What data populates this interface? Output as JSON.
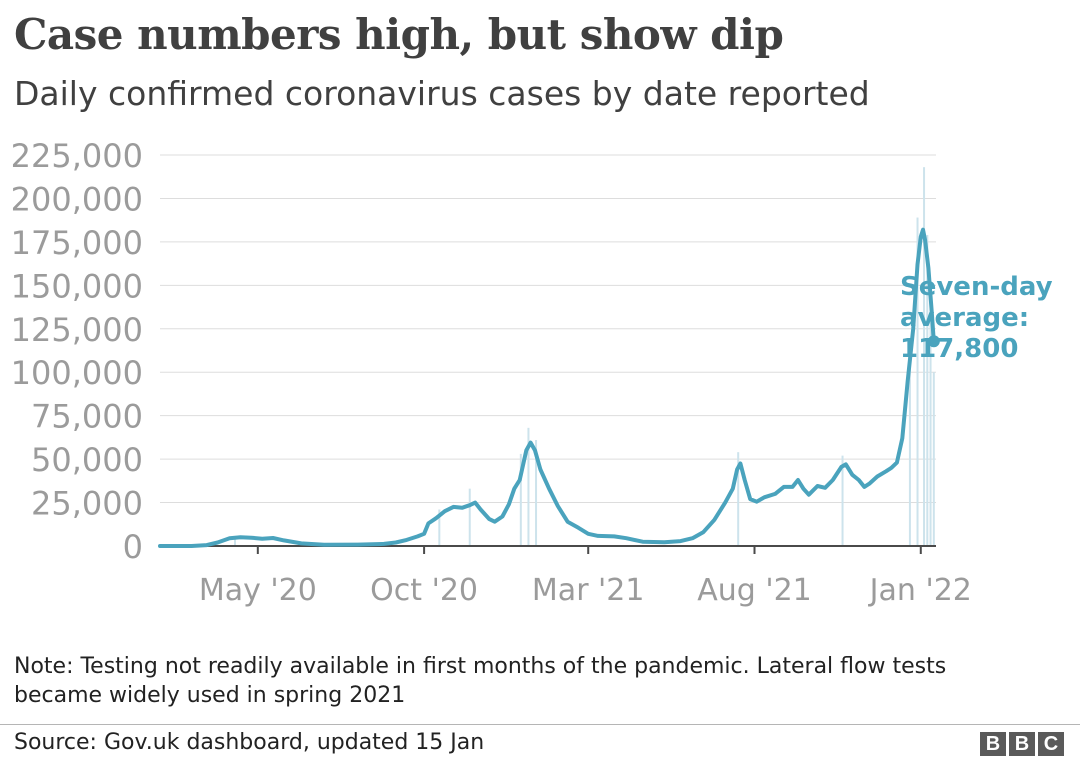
{
  "header": {
    "title": "Case numbers high, but show dip",
    "subtitle": "Daily confirmed coronavirus cases by date reported"
  },
  "footer": {
    "note": "Note: Testing not readily available in first months of the pandemic. Lateral flow tests became widely used in spring 2021",
    "source": "Source: Gov.uk dashboard, updated 15 Jan",
    "logo": "BBC",
    "logo_letters": [
      "B",
      "B",
      "C"
    ]
  },
  "colors": {
    "line": "#4aa3bd",
    "bars": "#cde3ec",
    "grid": "#dddddd",
    "axis": "#4a4a4a",
    "ytick": "#9b9b9b",
    "xtick": "#9b9b9b",
    "annotation": "#4aa3bd"
  },
  "chart_data": {
    "type": "line",
    "title": "Case numbers high, but show dip",
    "subtitle": "Daily confirmed coronavirus cases by date reported",
    "xlabel": "",
    "ylabel": "",
    "xlim": [
      "2020-02-01",
      "2022-01-15"
    ],
    "ylim": [
      0,
      225000
    ],
    "y_ticks": [
      0,
      25000,
      50000,
      75000,
      100000,
      125000,
      150000,
      175000,
      200000,
      225000
    ],
    "y_tick_labels": [
      "0",
      "25,000",
      "50,000",
      "75,000",
      "100,000",
      "125,000",
      "150,000",
      "175,000",
      "200,000",
      "225,000"
    ],
    "x_ticks": [
      "2020-05-01",
      "2020-10-01",
      "2021-03-01",
      "2021-08-01",
      "2022-01-01"
    ],
    "x_tick_labels": [
      "May '20",
      "Oct '20",
      "Mar '21",
      "Aug '21",
      "Jan '22"
    ],
    "grid": true,
    "legend": "none",
    "series": [
      {
        "type": "line",
        "points": [
          [
            "2020-02-01",
            0
          ],
          [
            "2020-03-01",
            0
          ],
          [
            "2020-03-15",
            500
          ],
          [
            "2020-03-25",
            2000
          ],
          [
            "2020-04-05",
            4500
          ],
          [
            "2020-04-15",
            5000
          ],
          [
            "2020-04-25",
            4800
          ],
          [
            "2020-05-05",
            4200
          ],
          [
            "2020-05-15",
            4600
          ],
          [
            "2020-05-25",
            3200
          ],
          [
            "2020-06-10",
            1500
          ],
          [
            "2020-07-01",
            700
          ],
          [
            "2020-08-01",
            800
          ],
          [
            "2020-08-25",
            1200
          ],
          [
            "2020-09-05",
            2000
          ],
          [
            "2020-09-15",
            3500
          ],
          [
            "2020-09-25",
            5500
          ],
          [
            "2020-10-01",
            7000
          ],
          [
            "2020-10-05",
            13000
          ],
          [
            "2020-10-12",
            16000
          ],
          [
            "2020-10-20",
            20000
          ],
          [
            "2020-10-28",
            22500
          ],
          [
            "2020-11-05",
            22000
          ],
          [
            "2020-11-12",
            23500
          ],
          [
            "2020-11-17",
            25000
          ],
          [
            "2020-11-22",
            21000
          ],
          [
            "2020-11-30",
            15500
          ],
          [
            "2020-12-05",
            14000
          ],
          [
            "2020-12-12",
            17000
          ],
          [
            "2020-12-18",
            24000
          ],
          [
            "2020-12-23",
            33000
          ],
          [
            "2020-12-28",
            38000
          ],
          [
            "2021-01-03",
            55000
          ],
          [
            "2021-01-07",
            59500
          ],
          [
            "2021-01-11",
            55000
          ],
          [
            "2021-01-16",
            44000
          ],
          [
            "2021-01-24",
            33000
          ],
          [
            "2021-02-01",
            23000
          ],
          [
            "2021-02-10",
            14000
          ],
          [
            "2021-02-20",
            10500
          ],
          [
            "2021-03-01",
            7000
          ],
          [
            "2021-03-10",
            5800
          ],
          [
            "2021-03-25",
            5500
          ],
          [
            "2021-04-05",
            4500
          ],
          [
            "2021-04-20",
            2500
          ],
          [
            "2021-05-10",
            2200
          ],
          [
            "2021-05-25",
            2800
          ],
          [
            "2021-06-05",
            4500
          ],
          [
            "2021-06-15",
            8000
          ],
          [
            "2021-06-25",
            15000
          ],
          [
            "2021-07-05",
            25000
          ],
          [
            "2021-07-12",
            33000
          ],
          [
            "2021-07-16",
            44000
          ],
          [
            "2021-07-19",
            47500
          ],
          [
            "2021-07-23",
            38000
          ],
          [
            "2021-07-28",
            27000
          ],
          [
            "2021-08-03",
            25500
          ],
          [
            "2021-08-10",
            28000
          ],
          [
            "2021-08-20",
            30000
          ],
          [
            "2021-08-28",
            34000
          ],
          [
            "2021-09-05",
            34000
          ],
          [
            "2021-09-10",
            38000
          ],
          [
            "2021-09-15",
            33000
          ],
          [
            "2021-09-20",
            29500
          ],
          [
            "2021-09-28",
            34500
          ],
          [
            "2021-10-05",
            33500
          ],
          [
            "2021-10-12",
            38000
          ],
          [
            "2021-10-20",
            45500
          ],
          [
            "2021-10-24",
            47000
          ],
          [
            "2021-10-30",
            41000
          ],
          [
            "2021-11-05",
            38000
          ],
          [
            "2021-11-10",
            34000
          ],
          [
            "2021-11-15",
            36000
          ],
          [
            "2021-11-22",
            40000
          ],
          [
            "2021-11-30",
            43000
          ],
          [
            "2021-12-05",
            45000
          ],
          [
            "2021-12-10",
            48000
          ],
          [
            "2021-12-15",
            62000
          ],
          [
            "2021-12-20",
            95000
          ],
          [
            "2021-12-25",
            125000
          ],
          [
            "2021-12-29",
            162000
          ],
          [
            "2022-01-01",
            178000
          ],
          [
            "2022-01-03",
            182000
          ],
          [
            "2022-01-05",
            176000
          ],
          [
            "2022-01-08",
            160000
          ],
          [
            "2022-01-11",
            135000
          ],
          [
            "2022-01-13",
            117800
          ]
        ]
      },
      {
        "type": "bar",
        "points": [
          [
            "2020-04-10",
            5500
          ],
          [
            "2020-10-15",
            21000
          ],
          [
            "2020-11-12",
            33000
          ],
          [
            "2020-12-29",
            53000
          ],
          [
            "2021-01-05",
            68000
          ],
          [
            "2021-01-12",
            61000
          ],
          [
            "2021-07-17",
            54000
          ],
          [
            "2021-10-21",
            52000
          ],
          [
            "2021-12-22",
            105000
          ],
          [
            "2021-12-29",
            189000
          ],
          [
            "2022-01-04",
            218000
          ],
          [
            "2022-01-07",
            179000
          ],
          [
            "2022-01-10",
            142000
          ],
          [
            "2022-01-13",
            100000
          ]
        ]
      }
    ],
    "annotations": [
      {
        "x": "2022-01-13",
        "y": 117800,
        "lines": [
          "Seven-day",
          "average:",
          "117,800"
        ]
      }
    ]
  }
}
